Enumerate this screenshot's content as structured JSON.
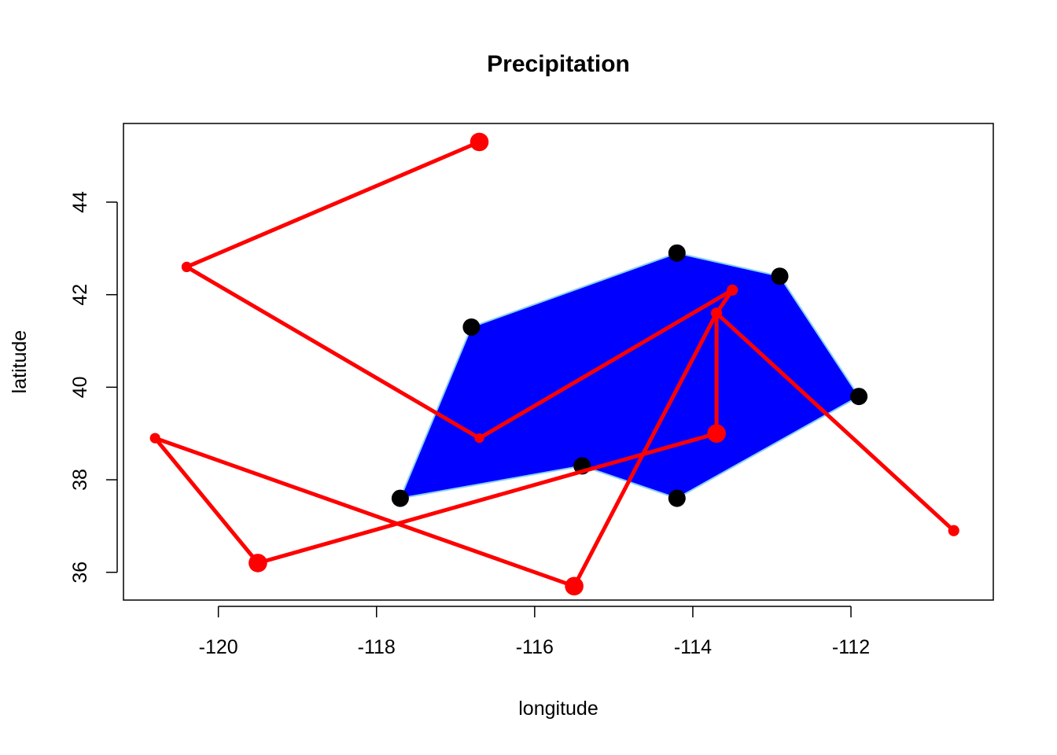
{
  "chart_data": {
    "type": "scatter",
    "title": "Precipitation",
    "xlabel": "longitude",
    "ylabel": "latitude",
    "xlim": [
      -121.2,
      -110.2
    ],
    "ylim": [
      35.4,
      45.7
    ],
    "x_ticks": [
      -120,
      -118,
      -116,
      -114,
      -112
    ],
    "x_tick_labels": [
      "-120",
      "-118",
      "-116",
      "-114",
      "-112"
    ],
    "y_ticks": [
      36,
      38,
      40,
      42,
      44
    ],
    "y_tick_labels": [
      "36",
      "38",
      "40",
      "42",
      "44"
    ],
    "grid": false,
    "legend": "none",
    "hull": {
      "fill_color": "#0000ff",
      "edge_color": "#87cefa",
      "points": [
        {
          "x": -117.7,
          "y": 37.6
        },
        {
          "x": -115.4,
          "y": 38.3
        },
        {
          "x": -114.2,
          "y": 37.6
        },
        {
          "x": -111.9,
          "y": 39.8
        },
        {
          "x": -112.9,
          "y": 42.4
        },
        {
          "x": -114.2,
          "y": 42.9
        },
        {
          "x": -116.8,
          "y": 41.3
        }
      ]
    },
    "hull_points": {
      "color": "#000000",
      "points": [
        {
          "x": -117.7,
          "y": 37.6
        },
        {
          "x": -115.4,
          "y": 38.3
        },
        {
          "x": -114.2,
          "y": 37.6
        },
        {
          "x": -111.9,
          "y": 39.8
        },
        {
          "x": -112.9,
          "y": 42.4
        },
        {
          "x": -114.2,
          "y": 42.9
        },
        {
          "x": -116.8,
          "y": 41.3
        }
      ]
    },
    "series": [
      {
        "color": "#ff0000",
        "connect": true,
        "points": [
          {
            "x": -116.7,
            "y": 45.3,
            "size": 3
          },
          {
            "x": -120.4,
            "y": 42.6,
            "size": 1
          },
          {
            "x": -116.7,
            "y": 38.9,
            "size": 0.8
          },
          {
            "x": -113.5,
            "y": 42.1,
            "size": 1.2
          },
          {
            "x": -113.7,
            "y": 41.6,
            "size": 1.2
          },
          {
            "x": -113.7,
            "y": 39.0,
            "size": 3
          },
          {
            "x": -119.5,
            "y": 36.2,
            "size": 3
          },
          {
            "x": -120.8,
            "y": 38.9,
            "size": 1
          },
          {
            "x": -115.5,
            "y": 35.7,
            "size": 3
          },
          {
            "x": -113.7,
            "y": 41.6,
            "size": 1.2
          },
          {
            "x": -110.7,
            "y": 36.9,
            "size": 1.2
          }
        ]
      }
    ]
  }
}
